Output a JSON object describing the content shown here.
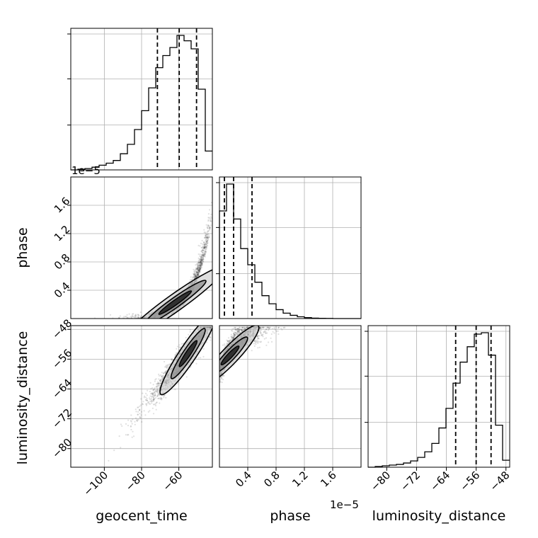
{
  "chart_data": {
    "type": "corner",
    "parameters": [
      "geocent_time",
      "phase",
      "luminosity_distance"
    ],
    "ranges": {
      "geocent_time": [
        -118,
        -42
      ],
      "phase": [
        0.0,
        2.0
      ],
      "luminosity_distance": [
        -85,
        -47
      ]
    },
    "offset_text": {
      "phase": "1e−5"
    },
    "ticks": {
      "geocent_time": {
        "values": [
          -100,
          -80,
          -60
        ],
        "labels": [
          "−100",
          "−80",
          "−60"
        ]
      },
      "phase": {
        "values": [
          0.4,
          0.8,
          1.2,
          1.6
        ],
        "labels": [
          "0.4",
          "0.8",
          "1.2",
          "1.6"
        ]
      },
      "luminosity_distance": {
        "values": [
          -80,
          -72,
          -64,
          -56,
          -48
        ],
        "labels": [
          "−80",
          "−72",
          "−64",
          "−56",
          "−48"
        ]
      }
    },
    "histograms": {
      "geocent_time": {
        "bin_edges": [
          -118,
          -114.2,
          -110.4,
          -106.6,
          -102.8,
          -99,
          -95.2,
          -91.4,
          -87.6,
          -83.8,
          -80,
          -76.2,
          -72.4,
          -68.6,
          -64.8,
          -61,
          -57.2,
          -53.4,
          -49.6,
          -45.8,
          -42
        ],
        "counts": [
          0.0,
          0.005,
          0.01,
          0.02,
          0.035,
          0.05,
          0.07,
          0.12,
          0.19,
          0.3,
          0.44,
          0.61,
          0.76,
          0.85,
          0.91,
          1.0,
          0.96,
          0.9,
          0.6,
          0.14
        ],
        "quantiles": [
          -71.5,
          -59.8,
          -50.5
        ]
      },
      "phase": {
        "bin_edges": [
          0,
          0.1,
          0.2,
          0.3,
          0.4,
          0.5,
          0.6,
          0.7,
          0.8,
          0.9,
          1.0,
          1.1,
          1.2,
          1.3,
          1.4,
          1.5,
          1.6,
          1.7,
          1.8,
          1.9,
          2.0
        ],
        "counts": [
          0.8,
          1.0,
          0.74,
          0.52,
          0.4,
          0.27,
          0.17,
          0.11,
          0.066,
          0.04,
          0.024,
          0.013,
          0.007,
          0.003,
          0.002,
          0.001,
          0.0,
          0.0,
          0.0,
          0.0
        ],
        "quantiles": [
          0.07,
          0.2,
          0.46
        ]
      },
      "luminosity_distance": {
        "bin_edges": [
          -85,
          -83.1,
          -81.2,
          -79.3,
          -77.4,
          -75.5,
          -73.6,
          -71.7,
          -69.8,
          -67.9,
          -66,
          -64.1,
          -62.2,
          -60.3,
          -58.4,
          -56.5,
          -54.6,
          -52.7,
          -50.8,
          -48.9,
          -47
        ],
        "counts": [
          0.0,
          0.005,
          0.01,
          0.015,
          0.02,
          0.03,
          0.045,
          0.07,
          0.11,
          0.17,
          0.28,
          0.42,
          0.6,
          0.75,
          0.86,
          0.95,
          0.96,
          0.8,
          0.3,
          0.05
        ],
        "quantiles": [
          -61.5,
          -56.0,
          -52.0
        ]
      }
    },
    "scatter_relations": {
      "phase_vs_geocent_time": {
        "x_at_peak_density": -66,
        "y_at_peak_density": 0.15,
        "shape": "curved, rising toward geocent_time = -42"
      },
      "luminosity_distance_vs_geocent_time": {
        "x_at_peak_density": -57,
        "y_at_peak_density": -56,
        "shape": "linear, positive slope"
      },
      "luminosity_distance_vs_phase": {
        "x_at_peak_density": 0.1,
        "y_at_peak_density": -56,
        "shape": "concave, saturating near -48"
      }
    },
    "grid": true,
    "contour_levels": 3
  }
}
